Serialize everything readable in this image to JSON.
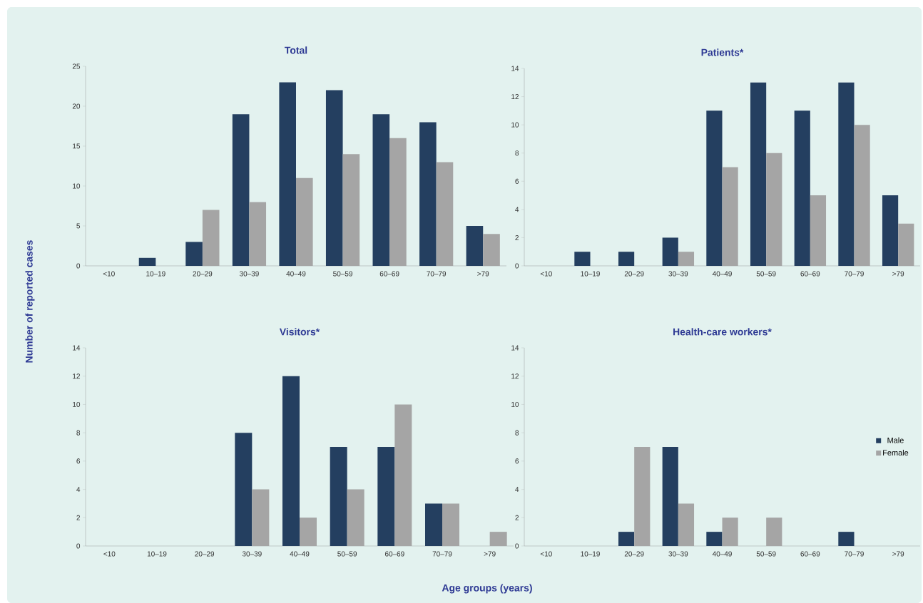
{
  "chart_data": [
    {
      "type": "bar",
      "title": "Total",
      "ylabel": "Number of reported cases",
      "categories": [
        "<10",
        "10–19",
        "20–29",
        "30–39",
        "40–49",
        "50–59",
        "60–69",
        "70–79",
        ">79"
      ],
      "ylim": [
        0,
        25
      ],
      "yticks": [
        0,
        5,
        10,
        15,
        20,
        25
      ],
      "series": [
        {
          "color": "#243f60",
          "values": [
            0,
            1,
            3,
            19,
            23,
            22,
            19,
            18,
            5
          ]
        },
        {
          "color": "#a5a5a5",
          "values": [
            0,
            0,
            7,
            8,
            11,
            14,
            16,
            13,
            4
          ]
        }
      ]
    },
    {
      "type": "bar",
      "title": "Patients*",
      "categories": [
        "<10",
        "10–19",
        "20–29",
        "30–39",
        "40–49",
        "50–59",
        "60–69",
        "70–79",
        ">79"
      ],
      "ylim": [
        0,
        14
      ],
      "yticks": [
        0,
        2,
        4,
        6,
        8,
        10,
        12,
        14
      ],
      "series": [
        {
          "color": "#243f60",
          "values": [
            0,
            1,
            1,
            2,
            11,
            13,
            11,
            13,
            5
          ]
        },
        {
          "color": "#a5a5a5",
          "values": [
            0,
            0,
            0,
            1,
            7,
            8,
            5,
            10,
            3
          ]
        }
      ]
    },
    {
      "type": "bar",
      "title": "Visitors*",
      "xlabel": "Age groups (years)",
      "categories": [
        "<10",
        "10–19",
        "20–29",
        "30–39",
        "40–49",
        "50–59",
        "60–69",
        "70–79",
        ">79"
      ],
      "ylim": [
        0,
        14
      ],
      "yticks": [
        0,
        2,
        4,
        6,
        8,
        10,
        12,
        14
      ],
      "series": [
        {
          "color": "#243f60",
          "values": [
            0,
            0,
            0,
            8,
            12,
            7,
            7,
            3,
            0
          ]
        },
        {
          "color": "#a5a5a5",
          "values": [
            0,
            0,
            0,
            4,
            2,
            4,
            10,
            3,
            1
          ]
        }
      ]
    },
    {
      "type": "bar",
      "title": "Health-care workers*",
      "legend": "right",
      "categories": [
        "<10",
        "10–19",
        "20–29",
        "30–39",
        "40–49",
        "50–59",
        "60–69",
        "70–79",
        ">79"
      ],
      "ylim": [
        0,
        14
      ],
      "yticks": [
        0,
        2,
        4,
        6,
        8,
        10,
        12,
        14
      ],
      "series": [
        {
          "name": "Male",
          "color": "#243f60",
          "values": [
            0,
            0,
            1,
            7,
            1,
            0,
            0,
            1,
            0
          ]
        },
        {
          "name": "Female",
          "color": "#a5a5a5",
          "values": [
            0,
            0,
            7,
            3,
            2,
            2,
            0,
            0,
            0
          ]
        }
      ]
    }
  ]
}
